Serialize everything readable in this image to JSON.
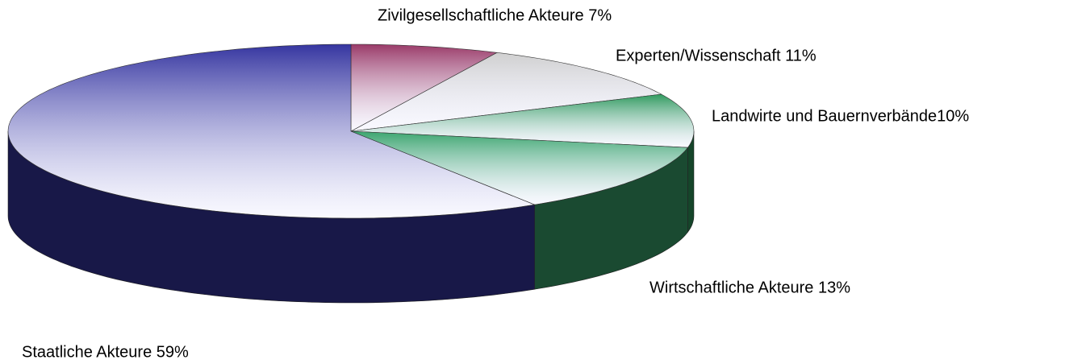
{
  "chart_data": {
    "type": "pie3d",
    "values": [
      7,
      11,
      10,
      13,
      59
    ],
    "value_labels": [
      "Zivilgesellschaftliche Akteure 7%",
      "Experten/Wissenschaft 11%",
      "Landwirte und Bauernverbände10%",
      "Wirtschaftliche Akteure 13%",
      "Staatliche Akteure 59%"
    ],
    "colors": [
      "#9a3a68",
      "#cfcfcf",
      "#2f9a5e",
      "#3aa56e",
      "#3535a0"
    ]
  }
}
